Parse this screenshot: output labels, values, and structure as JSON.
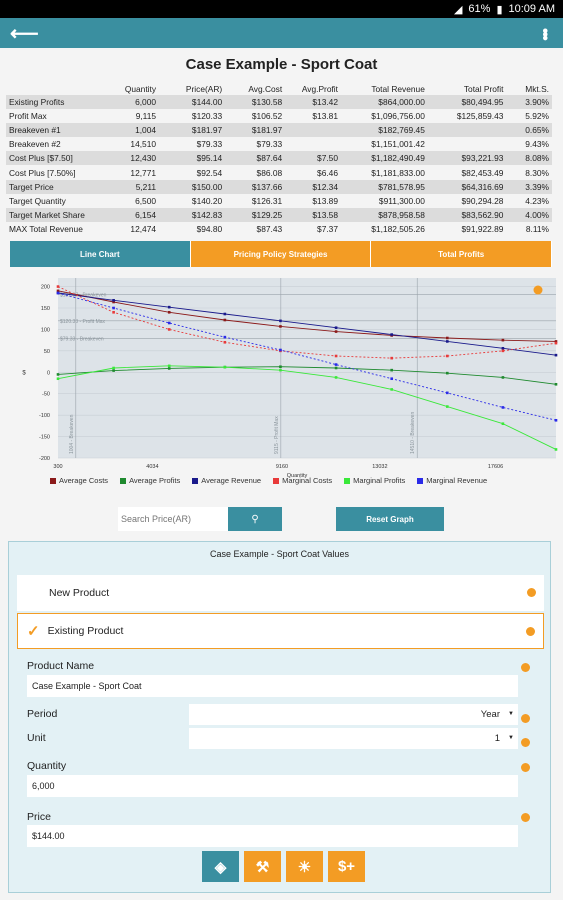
{
  "status": {
    "battery": "61%",
    "time": "10:09 AM"
  },
  "title": "Case Example - Sport Coat",
  "stats": {
    "columns": [
      "Quantity",
      "Price(AR)",
      "Avg.Cost",
      "Avg.Profit",
      "Total Revenue",
      "Total Profit",
      "Mkt.S."
    ],
    "rows": [
      {
        "label": "Existing Profits",
        "cells": [
          "6,000",
          "$144.00",
          "$130.58",
          "$13.42",
          "$864,000.00",
          "$80,494.95",
          "3.90%"
        ]
      },
      {
        "label": "Profit Max",
        "cells": [
          "9,115",
          "$120.33",
          "$106.52",
          "$13.81",
          "$1,096,756.00",
          "$125,859.43",
          "5.92%"
        ]
      },
      {
        "label": "Breakeven #1",
        "cells": [
          "1,004",
          "$181.97",
          "$181.97",
          "",
          "$182,769.45",
          "",
          "0.65%"
        ]
      },
      {
        "label": "Breakeven #2",
        "cells": [
          "14,510",
          "$79.33",
          "$79.33",
          "",
          "$1,151,001.42",
          "",
          "9.43%"
        ]
      },
      {
        "label": "Cost Plus [$7.50]",
        "cells": [
          "12,430",
          "$95.14",
          "$87.64",
          "$7.50",
          "$1,182,490.49",
          "$93,221.93",
          "8.08%"
        ]
      },
      {
        "label": "Cost Plus [7.50%]",
        "cells": [
          "12,771",
          "$92.54",
          "$86.08",
          "$6.46",
          "$1,181,833.00",
          "$82,453.49",
          "8.30%"
        ]
      },
      {
        "label": "Target Price",
        "cells": [
          "5,211",
          "$150.00",
          "$137.66",
          "$12.34",
          "$781,578.95",
          "$64,316.69",
          "3.39%"
        ]
      },
      {
        "label": "Target Quantity",
        "cells": [
          "6,500",
          "$140.20",
          "$126.31",
          "$13.89",
          "$911,300.00",
          "$90,294.28",
          "4.23%"
        ]
      },
      {
        "label": "Target Market Share",
        "cells": [
          "6,154",
          "$142.83",
          "$129.25",
          "$13.58",
          "$878,958.58",
          "$83,562.90",
          "4.00%"
        ]
      },
      {
        "label": "MAX Total Revenue",
        "cells": [
          "12,474",
          "$94.80",
          "$87.43",
          "$7.37",
          "$1,182,505.26",
          "$91,922.89",
          "8.11%"
        ]
      }
    ]
  },
  "tabs": [
    {
      "label": "Line Chart"
    },
    {
      "label": "Pricing Policy Strategies"
    },
    {
      "label": "Total Profits"
    }
  ],
  "chart_data": {
    "type": "line",
    "xlabel": "Quantity",
    "ylabel": "$",
    "xlim": [
      300,
      20000
    ],
    "ylim": [
      -200,
      220
    ],
    "x_ticks": [
      "300",
      "4034",
      "9160",
      "13032",
      "17606"
    ],
    "y_ticks": [
      "200",
      "150",
      "100",
      "50",
      "0",
      "-50",
      "-100",
      "-150",
      "-200"
    ],
    "hlines": [
      {
        "y": 182,
        "label": "$181.97 - Breakeven"
      },
      {
        "y": 120,
        "label": "$120.33 - Profit Max"
      },
      {
        "y": 79,
        "label": "$79.33 - Breakeven"
      }
    ],
    "vlines": [
      {
        "x": 1004,
        "label": "1004 - Breakeven"
      },
      {
        "x": 9115,
        "label": "9115 - Profit Max"
      },
      {
        "x": 14510,
        "label": "14510 - Breakeven"
      }
    ],
    "x": [
      300,
      2500,
      4700,
      6900,
      9100,
      11300,
      13500,
      15700,
      17900,
      20000
    ],
    "series": [
      {
        "name": "Average Costs",
        "color": "#8b1a1a",
        "values": [
          190,
          164,
          140,
          122,
          107,
          95,
          86,
          80,
          75,
          72
        ]
      },
      {
        "name": "Average Profits",
        "color": "#1f8a2f",
        "values": [
          -5,
          4,
          9,
          12,
          13,
          10,
          5,
          -2,
          -12,
          -28
        ]
      },
      {
        "name": "Average Revenue",
        "color": "#1a1a8b",
        "values": [
          185,
          168,
          152,
          136,
          120,
          104,
          88,
          72,
          56,
          40
        ]
      },
      {
        "name": "Marginal Costs",
        "color": "#e83a3a",
        "values": [
          200,
          140,
          100,
          70,
          50,
          38,
          33,
          38,
          50,
          68
        ]
      },
      {
        "name": "Marginal Profits",
        "color": "#3ae83a",
        "values": [
          -15,
          10,
          15,
          12,
          5,
          -12,
          -40,
          -80,
          -120,
          -180
        ]
      },
      {
        "name": "Marginal Revenue",
        "color": "#2a2ae8",
        "values": [
          185,
          150,
          115,
          82,
          52,
          18,
          -15,
          -48,
          -82,
          -112
        ]
      }
    ]
  },
  "search": {
    "placeholder": "Search Price(AR)",
    "button_icon": "search-icon"
  },
  "reset_label": "Reset Graph",
  "panel": {
    "title": "Case Example - Sport Coat Values",
    "options": [
      {
        "label": "New Product",
        "selected": false
      },
      {
        "label": "Existing Product",
        "selected": true
      }
    ],
    "product_name_label": "Product Name",
    "product_name_value": "Case Example - Sport Coat",
    "period_label": "Period",
    "period_value": "Year",
    "unit_label": "Unit",
    "unit_value": "1",
    "quantity_label": "Quantity",
    "quantity_value": "6,000",
    "price_label": "Price",
    "price_value": "$144.00"
  },
  "toolbar": [
    {
      "icon": "lightbulb-icon",
      "color": "#3a8fa0"
    },
    {
      "icon": "anvil-icon",
      "color": "#f39c24"
    },
    {
      "icon": "weather-icon",
      "color": "#f39c24"
    },
    {
      "icon": "dollar-plus-icon",
      "color": "#f39c24"
    }
  ],
  "colors": {
    "accent": "#3a8fa0",
    "orange": "#f39c24"
  }
}
